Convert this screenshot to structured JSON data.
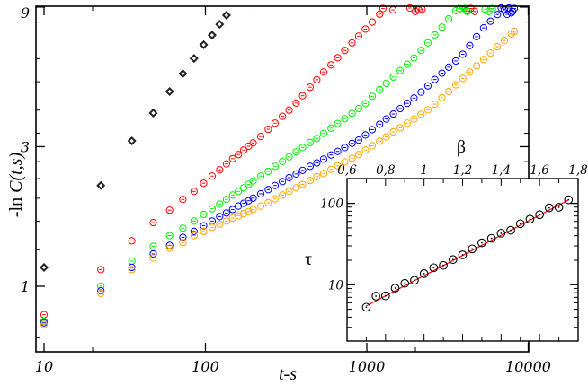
{
  "chart_data": [
    {
      "type": "scatter",
      "title": "",
      "xlabel": "t-s",
      "ylabel": "-ln C(t,s)",
      "xscale": "log",
      "yscale": "log",
      "xlim": [
        8.9,
        10000
      ],
      "ylim": [
        0.6,
        9
      ],
      "xticks": [
        10,
        100,
        1000,
        10000
      ],
      "xtick_labels": [
        "10",
        "100",
        "1000",
        "10000"
      ],
      "yticks": [
        1,
        3,
        9
      ],
      "ytick_labels": [
        "1",
        "3",
        "9"
      ],
      "grid": false,
      "series": [
        {
          "color": "#000000",
          "marker": "diamond",
          "x": [
            10,
            22.5,
            35,
            47.5,
            60,
            72.5,
            85,
            97.5,
            110,
            122.5,
            135
          ],
          "y": [
            1.16,
            2.21,
            3.14,
            3.91,
            4.63,
            5.33,
            6.01,
            6.69,
            7.22,
            7.86,
            8.44
          ]
        },
        {
          "color": "#ff0000",
          "marker": "circle",
          "x": [
            10,
            22.5,
            35,
            47.5,
            60,
            72.5,
            85,
            97.5,
            110,
            122.5,
            135,
            147.5,
            160,
            172.5,
            185,
            197.5,
            220,
            245,
            270,
            300,
            330,
            365,
            400,
            445,
            490,
            540,
            600,
            660,
            730,
            810,
            890,
            980,
            1080,
            1200,
            1260,
            1450,
            1850,
            2000,
            2100,
            2200,
            4150,
            4400,
            4650
          ],
          "y": [
            0.8,
            1.14,
            1.43,
            1.65,
            1.82,
            1.98,
            2.11,
            2.25,
            2.38,
            2.5,
            2.62,
            2.73,
            2.82,
            2.92,
            3.01,
            3.09,
            3.25,
            3.44,
            3.61,
            3.81,
            4.0,
            4.23,
            4.48,
            4.79,
            5.08,
            5.4,
            5.71,
            6.04,
            6.4,
            6.79,
            7.16,
            7.57,
            8.0,
            8.51,
            8.9,
            8.8,
            8.95,
            8.7,
            8.8,
            8.85,
            8.75,
            8.9,
            8.7
          ]
        },
        {
          "color": "#00ee00",
          "marker": "circle",
          "x": [
            10,
            22.5,
            35,
            47.5,
            60,
            72.5,
            85,
            97.5,
            110,
            122.5,
            135,
            147.5,
            160,
            172.5,
            185,
            197.5,
            220,
            245,
            270,
            300,
            330,
            365,
            400,
            445,
            490,
            540,
            600,
            660,
            730,
            810,
            890,
            980,
            1080,
            1200,
            1320,
            1460,
            1610,
            1780,
            1960,
            2170,
            2390,
            2640,
            2920,
            3220,
            3560,
            3750,
            3900,
            4050,
            4200,
            5400,
            5700,
            6000
          ],
          "y": [
            0.76,
            1.0,
            1.22,
            1.37,
            1.49,
            1.58,
            1.67,
            1.76,
            1.84,
            1.91,
            1.98,
            2.05,
            2.11,
            2.17,
            2.23,
            2.29,
            2.38,
            2.47,
            2.57,
            2.67,
            2.77,
            2.88,
            2.98,
            3.1,
            3.2,
            3.33,
            3.47,
            3.6,
            3.74,
            3.9,
            4.05,
            4.21,
            4.46,
            4.7,
            4.94,
            5.19,
            5.46,
            5.74,
            6.03,
            6.4,
            6.79,
            7.23,
            7.69,
            8.21,
            8.75,
            8.9,
            8.8,
            8.9,
            8.7,
            8.85,
            8.7,
            8.9
          ]
        },
        {
          "color": "#0000ff",
          "marker": "circle",
          "x": [
            10,
            22.5,
            35,
            47.5,
            60,
            72.5,
            85,
            97.5,
            110,
            122.5,
            135,
            147.5,
            160,
            172.5,
            185,
            197.5,
            220,
            245,
            270,
            300,
            330,
            365,
            400,
            445,
            490,
            540,
            600,
            660,
            730,
            810,
            890,
            980,
            1080,
            1200,
            1320,
            1460,
            1610,
            1780,
            1960,
            2170,
            2390,
            2640,
            2920,
            3220,
            3560,
            3930,
            4340,
            4790,
            5290,
            5840,
            6450,
            6800,
            7120,
            7400,
            7600,
            7860,
            8000,
            8200
          ],
          "y": [
            0.75,
            0.965,
            1.16,
            1.29,
            1.38,
            1.47,
            1.54,
            1.61,
            1.67,
            1.73,
            1.78,
            1.83,
            1.88,
            1.92,
            1.96,
            2.0,
            2.07,
            2.14,
            2.21,
            2.28,
            2.35,
            2.42,
            2.49,
            2.57,
            2.64,
            2.72,
            2.81,
            2.89,
            2.98,
            3.08,
            3.16,
            3.29,
            3.43,
            3.58,
            3.73,
            3.88,
            4.05,
            4.22,
            4.4,
            4.61,
            4.84,
            5.09,
            5.35,
            5.61,
            5.89,
            6.21,
            6.65,
            7.13,
            7.64,
            8.05,
            8.49,
            8.95,
            8.81,
            8.5,
            8.95,
            8.6,
            8.7,
            8.9
          ]
        },
        {
          "color": "#ffa500",
          "marker": "circle",
          "x": [
            10,
            22.5,
            35,
            47.5,
            60,
            72.5,
            85,
            97.5,
            110,
            122.5,
            135,
            147.5,
            160,
            172.5,
            185,
            197.5,
            220,
            245,
            270,
            300,
            330,
            365,
            400,
            445,
            490,
            540,
            600,
            660,
            730,
            810,
            890,
            980,
            1080,
            1200,
            1320,
            1460,
            1610,
            1780,
            1960,
            2170,
            2390,
            2640,
            2920,
            3220,
            3560,
            3930,
            4340,
            4790,
            5290,
            5840,
            6450,
            7120,
            7860,
            8200
          ],
          "y": [
            0.74,
            0.945,
            1.14,
            1.25,
            1.35,
            1.41,
            1.49,
            1.54,
            1.59,
            1.63,
            1.67,
            1.71,
            1.74,
            1.77,
            1.8,
            1.83,
            1.88,
            1.93,
            1.99,
            2.05,
            2.11,
            2.17,
            2.23,
            2.3,
            2.37,
            2.43,
            2.51,
            2.58,
            2.66,
            2.74,
            2.82,
            2.92,
            3.02,
            3.13,
            3.24,
            3.37,
            3.48,
            3.61,
            3.73,
            3.87,
            4.01,
            4.19,
            4.41,
            4.63,
            4.88,
            5.13,
            5.4,
            5.67,
            5.96,
            6.27,
            6.59,
            6.92,
            7.28,
            7.43
          ]
        }
      ]
    },
    {
      "type": "scatter",
      "title": "",
      "xlabel": "β",
      "ylabel": "τ",
      "xscale": "linear",
      "yscale": "log",
      "xlim": [
        0.6,
        1.8
      ],
      "ylim": [
        2,
        200
      ],
      "xticks": [
        0.6,
        0.8,
        1,
        1.2,
        1.4,
        1.6,
        1.8
      ],
      "xtick_labels": [
        "0,6",
        "0,8",
        "1",
        "1,2",
        "1,4",
        "1,6",
        "1,8"
      ],
      "yticks": [
        10,
        100
      ],
      "ytick_labels": [
        "10",
        "100"
      ],
      "grid": false,
      "points": {
        "color": "#000000",
        "marker": "circle",
        "x": [
          0.7,
          0.75,
          0.8,
          0.85,
          0.9,
          0.95,
          1.0,
          1.05,
          1.1,
          1.15,
          1.2,
          1.25,
          1.3,
          1.35,
          1.4,
          1.45,
          1.5,
          1.55,
          1.6,
          1.65,
          1.7,
          1.75
        ],
        "y": [
          5.3,
          7.25,
          7.3,
          9.1,
          10.4,
          11.35,
          13.7,
          16.2,
          17.3,
          20.4,
          23.3,
          27.6,
          32.7,
          37.2,
          42.9,
          46.7,
          56.2,
          63.9,
          72.5,
          88.1,
          89.5,
          110.7
        ]
      },
      "fit_line": {
        "color": "#ff0000",
        "x": [
          0.7,
          1.75
        ],
        "y": [
          5.5,
          110
        ]
      }
    }
  ]
}
